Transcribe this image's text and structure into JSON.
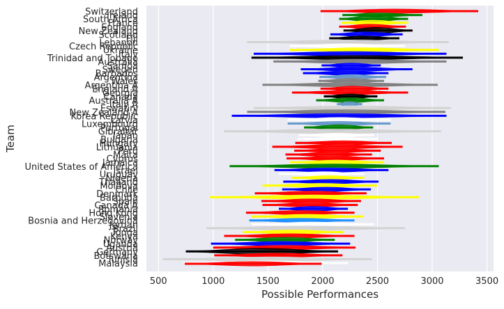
{
  "chart_data": {
    "type": "range-violin",
    "xlabel": "Possible Performances",
    "ylabel": "Team",
    "xlim": [
      390,
      3560
    ],
    "xticks": [
      500,
      1000,
      1500,
      2000,
      2500,
      3000,
      3500
    ],
    "grid": true,
    "background": "#eaeaf2",
    "teams": [
      {
        "name": "Switzerland",
        "min": 1980,
        "max": 3420,
        "center": 2650,
        "width": 0.28,
        "color": "#ff0000"
      },
      {
        "name": "Ireland",
        "min": 2180,
        "max": 2910,
        "center": 2500,
        "width": 0.3,
        "color": "#008000"
      },
      {
        "name": "South Africa",
        "min": 2150,
        "max": 2780,
        "center": 2450,
        "width": 0.55,
        "color": "#008000"
      },
      {
        "name": "France",
        "min": 2170,
        "max": 2780,
        "center": 2450,
        "width": 0.4,
        "color": "#ffff00"
      },
      {
        "name": "England",
        "min": 2150,
        "max": 2760,
        "center": 2420,
        "width": 0.4,
        "color": "#ff0000"
      },
      {
        "name": "New Zealand",
        "min": 2190,
        "max": 2820,
        "center": 2480,
        "width": 0.6,
        "color": "#000000"
      },
      {
        "name": "Scotland",
        "min": 2070,
        "max": 2730,
        "center": 2380,
        "width": 0.4,
        "color": "#0000ff"
      },
      {
        "name": "Fiji",
        "min": 2060,
        "max": 2700,
        "center": 2370,
        "width": 0.35,
        "color": "#000000"
      },
      {
        "name": "Lebanon",
        "min": 1310,
        "max": 3150,
        "center": 2240,
        "width": 0.3,
        "color": "#d3d3d3"
      },
      {
        "name": "Czech Republic",
        "min": 1700,
        "max": 2750,
        "center": 2200,
        "width": 0.3,
        "color": "#ffffff"
      },
      {
        "name": "Ukraine",
        "min": 1700,
        "max": 3060,
        "center": 2350,
        "width": 0.3,
        "color": "#ffff00"
      },
      {
        "name": "Italy",
        "min": 1370,
        "max": 3130,
        "center": 2250,
        "width": 0.3,
        "color": "#0000ff"
      },
      {
        "name": "Trinidad and Tobago",
        "min": 1350,
        "max": 3280,
        "center": 2300,
        "width": 0.3,
        "color": "#000000"
      },
      {
        "name": "Australia",
        "min": 1550,
        "max": 3130,
        "center": 2320,
        "width": 0.3,
        "color": "#808080"
      },
      {
        "name": "Samoa",
        "min": 1990,
        "max": 2530,
        "center": 2260,
        "width": 0.35,
        "color": "#0000ff"
      },
      {
        "name": "Sweden",
        "min": 1800,
        "max": 2820,
        "center": 2300,
        "width": 0.3,
        "color": "#0000ff"
      },
      {
        "name": "Barbados",
        "min": 1820,
        "max": 2600,
        "center": 2220,
        "width": 0.3,
        "color": "#0000ff"
      },
      {
        "name": "Argentina",
        "min": 1970,
        "max": 2580,
        "center": 2270,
        "width": 0.4,
        "color": "#6699cc"
      },
      {
        "name": "Wales",
        "min": 1960,
        "max": 2560,
        "center": 2260,
        "width": 0.4,
        "color": "#808080"
      },
      {
        "name": "Argentina A",
        "min": 1450,
        "max": 3050,
        "center": 2250,
        "width": 0.3,
        "color": "#808080"
      },
      {
        "name": "England A",
        "min": 1980,
        "max": 2600,
        "center": 2280,
        "width": 0.4,
        "color": "#ff0000"
      },
      {
        "name": "Georgia",
        "min": 1720,
        "max": 2780,
        "center": 2250,
        "width": 0.3,
        "color": "#ff0000"
      },
      {
        "name": "Canada",
        "min": 2010,
        "max": 2500,
        "center": 2250,
        "width": 0.4,
        "color": "#000000"
      },
      {
        "name": "Australia A",
        "min": 1940,
        "max": 2560,
        "center": 2250,
        "width": 0.4,
        "color": "#008000"
      },
      {
        "name": "Italy A",
        "min": 2130,
        "max": 2360,
        "center": 2240,
        "width": 0.4,
        "color": "#6699cc"
      },
      {
        "name": "Eswatini",
        "min": 1370,
        "max": 3170,
        "center": 2270,
        "width": 0.3,
        "color": "#d3d3d3"
      },
      {
        "name": "New Zealand A",
        "min": 1310,
        "max": 3120,
        "center": 2210,
        "width": 0.3,
        "color": "#808080"
      },
      {
        "name": "Korea Republic",
        "min": 1170,
        "max": 3130,
        "center": 2150,
        "width": 0.3,
        "color": "#0000ff"
      },
      {
        "name": "Latvia",
        "min": 1680,
        "max": 2620,
        "center": 2150,
        "width": 0.3,
        "color": "#ffffff"
      },
      {
        "name": "Luxembourg",
        "min": 1680,
        "max": 2620,
        "center": 2150,
        "width": 0.3,
        "color": "#6699cc"
      },
      {
        "name": "Portugal",
        "min": 1830,
        "max": 2460,
        "center": 2150,
        "width": 0.45,
        "color": "#008000"
      },
      {
        "name": "Gibraltar",
        "min": 1100,
        "max": 3080,
        "center": 2090,
        "width": 0.3,
        "color": "#d3d3d3"
      },
      {
        "name": "Japan",
        "min": 1780,
        "max": 2470,
        "center": 2130,
        "width": 0.25,
        "color": "#ffffff"
      },
      {
        "name": "Bulgaria",
        "min": 1770,
        "max": 2500,
        "center": 2140,
        "width": 0.2,
        "color": "#ffffff"
      },
      {
        "name": "Hungary",
        "min": 1750,
        "max": 2630,
        "center": 2190,
        "width": 0.3,
        "color": "#ff0000"
      },
      {
        "name": "Lithuania",
        "min": 1540,
        "max": 2730,
        "center": 2130,
        "width": 0.3,
        "color": "#ff0000"
      },
      {
        "name": "Peru",
        "min": 1740,
        "max": 2530,
        "center": 2130,
        "width": 0.3,
        "color": "#ff0000"
      },
      {
        "name": "Malta",
        "min": 1660,
        "max": 2450,
        "center": 2060,
        "width": 0.3,
        "color": "#ff0000"
      },
      {
        "name": "Cyprus",
        "min": 1670,
        "max": 2560,
        "center": 2110,
        "width": 0.3,
        "color": "#ff0000"
      },
      {
        "name": "Jamaica",
        "min": 1700,
        "max": 2560,
        "center": 2130,
        "width": 0.3,
        "color": "#ffff00"
      },
      {
        "name": "United States of America",
        "min": 1150,
        "max": 3060,
        "center": 2100,
        "width": 0.3,
        "color": "#008000"
      },
      {
        "name": "Israel",
        "min": 1560,
        "max": 2600,
        "center": 2080,
        "width": 0.3,
        "color": "#0000ff"
      },
      {
        "name": "Uruguay",
        "min": 1600,
        "max": 2380,
        "center": 2000,
        "width": 0.3,
        "color": "#ffffff"
      },
      {
        "name": "Nigeria",
        "min": 1720,
        "max": 2380,
        "center": 2050,
        "width": 0.3,
        "color": "#ffff00"
      },
      {
        "name": "Thailand",
        "min": 1640,
        "max": 2510,
        "center": 2080,
        "width": 0.3,
        "color": "#0000ff"
      },
      {
        "name": "Moldova",
        "min": 1450,
        "max": 2500,
        "center": 1970,
        "width": 0.3,
        "color": "#ffff00"
      },
      {
        "name": "Chile",
        "min": 1630,
        "max": 2440,
        "center": 2030,
        "width": 0.3,
        "color": "#0000ff"
      },
      {
        "name": "Denmark",
        "min": 1380,
        "max": 2400,
        "center": 1890,
        "width": 0.3,
        "color": "#ff0000"
      },
      {
        "name": "Barbuda",
        "min": 970,
        "max": 2880,
        "center": 1930,
        "width": 0.3,
        "color": "#ffff00"
      },
      {
        "name": "Spain",
        "min": 1440,
        "max": 2350,
        "center": 1900,
        "width": 0.3,
        "color": "#ff0000"
      },
      {
        "name": "Canada A",
        "min": 1450,
        "max": 2320,
        "center": 1880,
        "width": 0.3,
        "color": "#ff0000"
      },
      {
        "name": "Romania",
        "min": 1600,
        "max": 2230,
        "center": 1920,
        "width": 0.4,
        "color": "#0000ff"
      },
      {
        "name": "Hong Kong",
        "min": 1300,
        "max": 2290,
        "center": 1800,
        "width": 0.3,
        "color": "#ff0000"
      },
      {
        "name": "Slovenia",
        "min": 1350,
        "max": 2370,
        "center": 1860,
        "width": 0.3,
        "color": "#ffff00"
      },
      {
        "name": "Bosnia and Herzegovina",
        "min": 1330,
        "max": 2290,
        "center": 1810,
        "width": 0.3,
        "color": "#1e90ff"
      },
      {
        "name": "Jordan",
        "min": 1350,
        "max": 2470,
        "center": 1910,
        "width": 0.3,
        "color": "#ffffff"
      },
      {
        "name": "Brazil",
        "min": 940,
        "max": 2750,
        "center": 1850,
        "width": 0.3,
        "color": "#d3d3d3"
      },
      {
        "name": "Tonga",
        "min": 1270,
        "max": 2190,
        "center": 1730,
        "width": 0.3,
        "color": "#ffff00"
      },
      {
        "name": "Kenya",
        "min": 1100,
        "max": 2290,
        "center": 1700,
        "width": 0.3,
        "color": "#ff0000"
      },
      {
        "name": "Norway",
        "min": 1200,
        "max": 2110,
        "center": 1650,
        "width": 0.4,
        "color": "#008000"
      },
      {
        "name": "Uganda",
        "min": 980,
        "max": 2250,
        "center": 1620,
        "width": 0.3,
        "color": "#0000ff"
      },
      {
        "name": "Austria",
        "min": 1000,
        "max": 2300,
        "center": 1650,
        "width": 0.3,
        "color": "#ff0000"
      },
      {
        "name": "Germany",
        "min": 750,
        "max": 2140,
        "center": 1450,
        "width": 0.6,
        "color": "#000000"
      },
      {
        "name": "Botswana",
        "min": 1010,
        "max": 2180,
        "center": 1600,
        "width": 0.3,
        "color": "#ff0000"
      },
      {
        "name": "Tunisia",
        "min": 540,
        "max": 2450,
        "center": 1500,
        "width": 0.3,
        "color": "#d3d3d3"
      },
      {
        "name": "Malaysia",
        "min": 730,
        "max": 2230,
        "center": 1480,
        "width": 0.3,
        "color": "#ffffff"
      }
    ],
    "extra_bottom": {
      "min": 740,
      "max": 1990,
      "center": 1360,
      "width": 0.3,
      "color": "#ff0000"
    }
  }
}
